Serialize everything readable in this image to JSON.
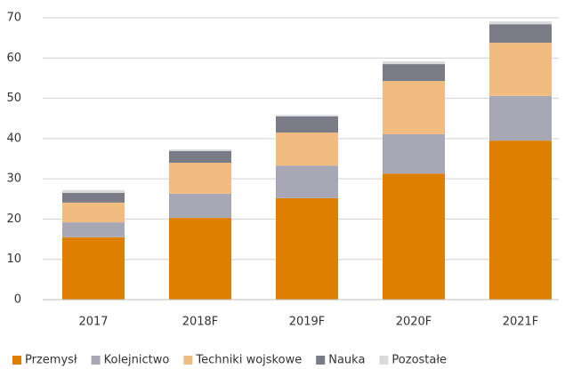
{
  "chart_data": {
    "type": "stacked_bar",
    "categories": [
      "2017",
      "2018F",
      "2019F",
      "2020F",
      "2021F"
    ],
    "series": [
      {
        "name": "Przemysł",
        "color": "#df7f00",
        "values": [
          15.5,
          20.3,
          25.2,
          31.3,
          39.5
        ]
      },
      {
        "name": "Kolejnictwo",
        "color": "#a7a7b5",
        "values": [
          3.7,
          6.0,
          8.1,
          9.8,
          11.1
        ]
      },
      {
        "name": "Techniki wojskowe",
        "color": "#f0bc80",
        "values": [
          4.9,
          7.7,
          8.2,
          13.2,
          13.2
        ]
      },
      {
        "name": "Nauka",
        "color": "#7b7b88",
        "values": [
          2.4,
          2.9,
          4.0,
          4.2,
          4.6
        ]
      },
      {
        "name": "Pozostałe",
        "color": "#dadada",
        "values": [
          0.7,
          0.4,
          0.4,
          0.7,
          0.7
        ]
      }
    ],
    "ylim": [
      0,
      70
    ],
    "yticks": [
      0,
      10,
      20,
      30,
      40,
      50,
      60,
      70
    ],
    "grid": true,
    "legend": "bottom"
  }
}
